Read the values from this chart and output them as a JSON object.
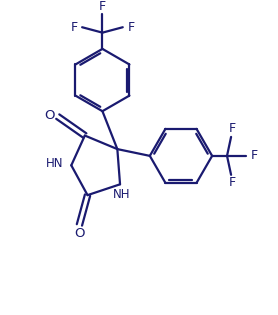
{
  "background_color": "#ffffff",
  "line_color": "#1a1a70",
  "line_width": 1.6,
  "text_color": "#1a1a70",
  "figsize": [
    2.78,
    3.15
  ],
  "dpi": 100,
  "xlim": [
    0,
    10
  ],
  "ylim": [
    0,
    11.3
  ]
}
